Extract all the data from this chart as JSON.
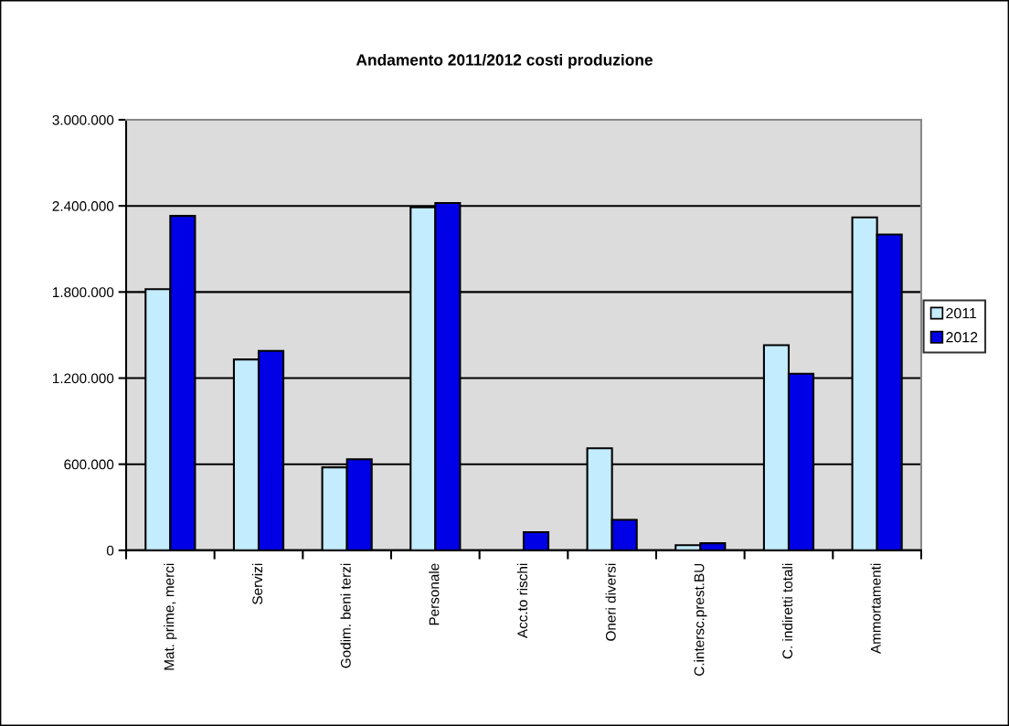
{
  "chart_data": {
    "type": "bar",
    "title": "Andamento 2011/2012 costi produzione",
    "categories": [
      "Mat. prime, merci",
      "Servizi",
      "Godim. beni terzi",
      "Personale",
      "Acc.to rischi",
      "Oneri diversi",
      "C.intersc.prest.BU",
      "C. indiretti totali",
      "Ammortamenti"
    ],
    "series": [
      {
        "name": "2011",
        "color": "#c4ecff",
        "values": [
          1820000,
          1330000,
          578000,
          2390000,
          null,
          711000,
          36000,
          1430000,
          2320000
        ]
      },
      {
        "name": "2012",
        "color": "#0000e6",
        "values": [
          2330000,
          1390000,
          635000,
          2420000,
          127000,
          212000,
          49000,
          1230000,
          2200000
        ]
      }
    ],
    "ylim": [
      0,
      3000000
    ],
    "yticks": [
      0,
      {
        "value": 600000,
        "label": "600.000"
      },
      {
        "value": 1200000,
        "label": "1.200.000"
      },
      {
        "value": 1800000,
        "label": "1.800.000"
      },
      {
        "value": 2400000,
        "label": "2.400.000"
      },
      {
        "value": 3000000,
        "label": "3.000.000"
      }
    ],
    "grid": "y",
    "legend": "right"
  }
}
